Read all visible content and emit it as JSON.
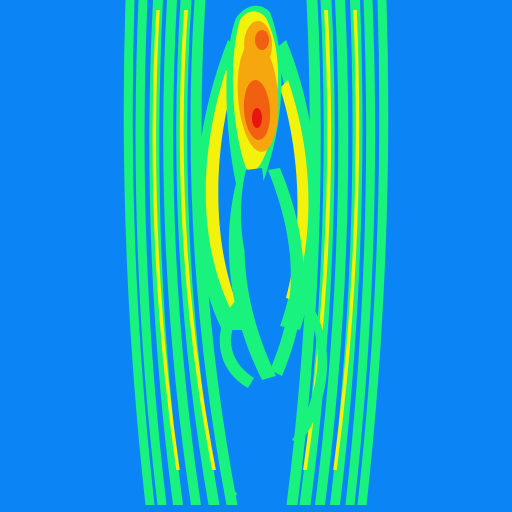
{
  "chart_data": {
    "type": "heatmap",
    "plot_style": "filled contour",
    "axes_visible": false,
    "grid": false,
    "legend": "none",
    "colorscale": [
      {
        "level": 0,
        "color": "#0b84f5"
      },
      {
        "level": 1,
        "color": "#19f27c"
      },
      {
        "level": 2,
        "color": "#f2f20c"
      },
      {
        "level": 3,
        "color": "#f6a70e"
      },
      {
        "level": 4,
        "color": "#f06010"
      },
      {
        "level": 5,
        "color": "#e81410"
      }
    ],
    "peak_level": 5
  }
}
